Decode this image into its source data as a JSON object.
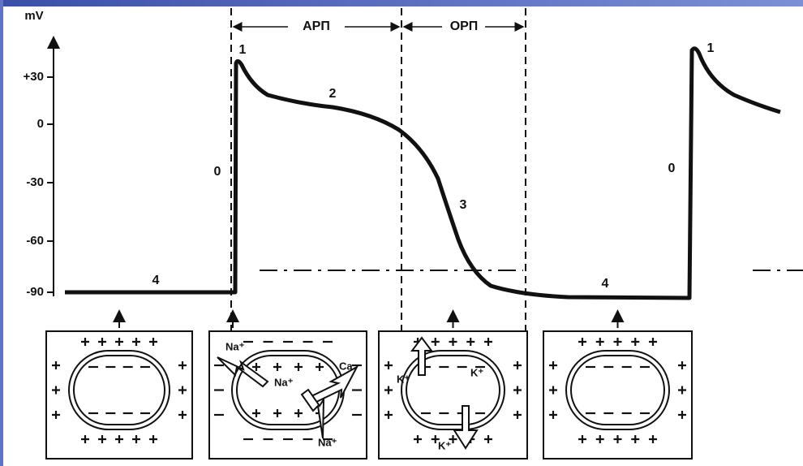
{
  "y_axis": {
    "unit": "mV",
    "ticks": [
      "+30",
      "0",
      "-30",
      "-60",
      "-90"
    ]
  },
  "periods": [
    "АРП",
    "ОРП"
  ],
  "phases": [
    "4",
    "0",
    "1",
    "2",
    "3",
    "4",
    "0",
    "1"
  ],
  "ion_labels": {
    "depolarization": [
      "Na⁺",
      "Na⁺",
      "Ca",
      "Na⁺"
    ],
    "repolarization": [
      "K⁺",
      "K⁺",
      "K⁺"
    ]
  }
}
